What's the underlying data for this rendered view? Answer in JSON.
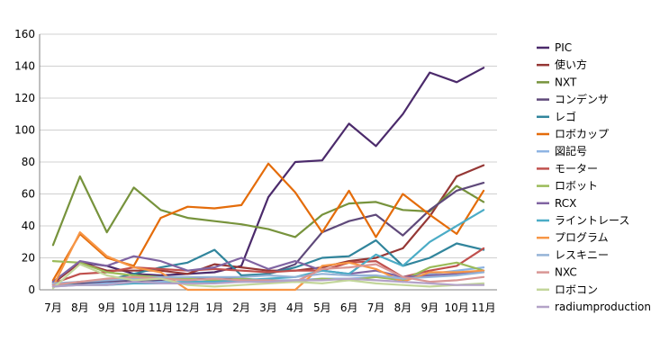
{
  "chart_data": {
    "type": "line",
    "title": "",
    "xlabel": "",
    "ylabel": "",
    "ylim": [
      0,
      160
    ],
    "y_ticks": [
      "0",
      "20",
      "40",
      "60",
      "80",
      "100",
      "120",
      "140",
      "160"
    ],
    "grid": "horizontal",
    "legend_position": "right",
    "categories": [
      "7月",
      "8月",
      "9月",
      "10月",
      "11月",
      "12月",
      "1月",
      "2月",
      "3月",
      "4月",
      "5月",
      "6月",
      "7月",
      "8月",
      "9月",
      "10月",
      "11月"
    ],
    "series": [
      {
        "name": "PIC",
        "color": "#4b2a6b",
        "values": [
          5,
          17,
          15,
          10,
          9,
          10,
          11,
          15,
          58,
          80,
          81,
          104,
          90,
          110,
          136,
          130,
          139
        ]
      },
      {
        "name": "使い方",
        "color": "#953735",
        "values": [
          4,
          17,
          12,
          12,
          12,
          10,
          16,
          14,
          12,
          12,
          14,
          18,
          20,
          26,
          46,
          71,
          78
        ]
      },
      {
        "name": "NXT",
        "color": "#77933c",
        "values": [
          28,
          71,
          36,
          64,
          50,
          45,
          43,
          41,
          38,
          33,
          47,
          54,
          55,
          50,
          49,
          65,
          55
        ]
      },
      {
        "name": "コンデンサ",
        "color": "#5f497a",
        "values": [
          3,
          4,
          5,
          6,
          6,
          7,
          7,
          8,
          10,
          16,
          36,
          43,
          47,
          34,
          50,
          62,
          67
        ]
      },
      {
        "name": "レゴ",
        "color": "#31859c",
        "values": [
          3,
          5,
          6,
          10,
          14,
          17,
          25,
          9,
          10,
          14,
          20,
          21,
          31,
          15,
          20,
          29,
          25
        ]
      },
      {
        "name": "ロボカップ",
        "color": "#e46c0a",
        "values": [
          6,
          35,
          20,
          15,
          45,
          52,
          51,
          53,
          79,
          61,
          36,
          62,
          33,
          60,
          47,
          35,
          62
        ]
      },
      {
        "name": "図記号",
        "color": "#8eb4e3",
        "values": [
          2,
          3,
          4,
          4,
          5,
          5,
          5,
          5,
          6,
          6,
          7,
          7,
          8,
          8,
          10,
          12,
          14
        ]
      },
      {
        "name": "モーター",
        "color": "#c0504d",
        "values": [
          4,
          10,
          11,
          14,
          13,
          12,
          13,
          12,
          11,
          12,
          12,
          17,
          18,
          8,
          12,
          15,
          26
        ]
      },
      {
        "name": "ロボット",
        "color": "#9bbb59",
        "values": [
          18,
          17,
          11,
          9,
          8,
          7,
          6,
          7,
          6,
          5,
          7,
          6,
          8,
          6,
          14,
          17,
          12
        ]
      },
      {
        "name": "RCX",
        "color": "#8064a2",
        "values": [
          5,
          18,
          15,
          21,
          18,
          12,
          14,
          20,
          13,
          18,
          12,
          10,
          12,
          8,
          9,
          10,
          12
        ]
      },
      {
        "name": "ライントレース",
        "color": "#4bacc6",
        "values": [
          3,
          3,
          3,
          4,
          4,
          5,
          5,
          6,
          7,
          8,
          12,
          10,
          22,
          15,
          30,
          40,
          50
        ]
      },
      {
        "name": "プログラム",
        "color": "#f79646",
        "values": [
          2,
          36,
          21,
          14,
          11,
          0,
          0,
          0,
          0,
          0,
          15,
          17,
          13,
          5,
          11,
          11,
          12
        ]
      },
      {
        "name": "レスキニー",
        "color": "#95b3d7",
        "values": [
          4,
          5,
          6,
          7,
          8,
          8,
          8,
          8,
          9,
          8,
          10,
          9,
          9,
          7,
          8,
          9,
          11
        ]
      },
      {
        "name": "NXC",
        "color": "#d99694",
        "values": [
          3,
          5,
          7,
          8,
          7,
          6,
          7,
          6,
          6,
          5,
          13,
          14,
          16,
          8,
          5,
          6,
          8
        ]
      },
      {
        "name": "ロボコン",
        "color": "#c3d69b",
        "values": [
          1,
          16,
          9,
          6,
          7,
          3,
          2,
          3,
          4,
          5,
          4,
          6,
          4,
          3,
          2,
          3,
          4
        ]
      },
      {
        "name": "radiumproduction",
        "color": "#b3a2c7",
        "values": [
          2,
          3,
          3,
          5,
          4,
          4,
          4,
          5,
          5,
          6,
          6,
          7,
          6,
          5,
          4,
          3,
          3
        ]
      }
    ]
  }
}
